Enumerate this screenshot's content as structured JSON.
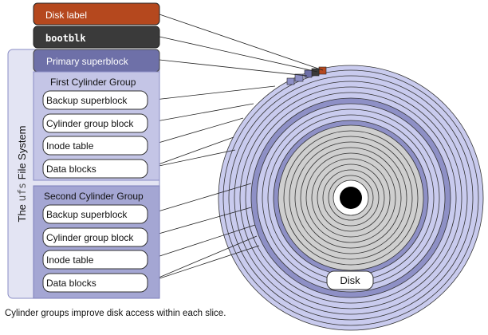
{
  "labels": {
    "disk_label": "Disk label",
    "bootblk": "bootblk",
    "primary_superblock": "Primary superblock",
    "fs_title_prefix": "The ",
    "fs_title_mono": "ufs",
    "fs_title_suffix": " File System",
    "disk": "Disk"
  },
  "groups": [
    {
      "title": "First Cylinder Group",
      "items": [
        "Backup superblock",
        "Cylinder group block",
        "Inode table",
        "Data blocks"
      ]
    },
    {
      "title": "Second Cylinder Group",
      "items": [
        "Backup superblock",
        "Cylinder group block",
        "Inode table",
        "Data blocks"
      ]
    }
  ],
  "caption": "Cylinder groups improve disk access within each slice.",
  "colors": {
    "disk_label": "#b5481e",
    "bootblk": "#3a3a3a",
    "primary_superblock": "#6e70a8",
    "fs_outer": "#e3e4f3",
    "group_box": "#bfc0e2",
    "group_box_dark": "#a0a2cf",
    "ring_light": "#c9cbee",
    "ring_dark": "#8e90c6",
    "ring_gray": "#cfcfcf"
  }
}
